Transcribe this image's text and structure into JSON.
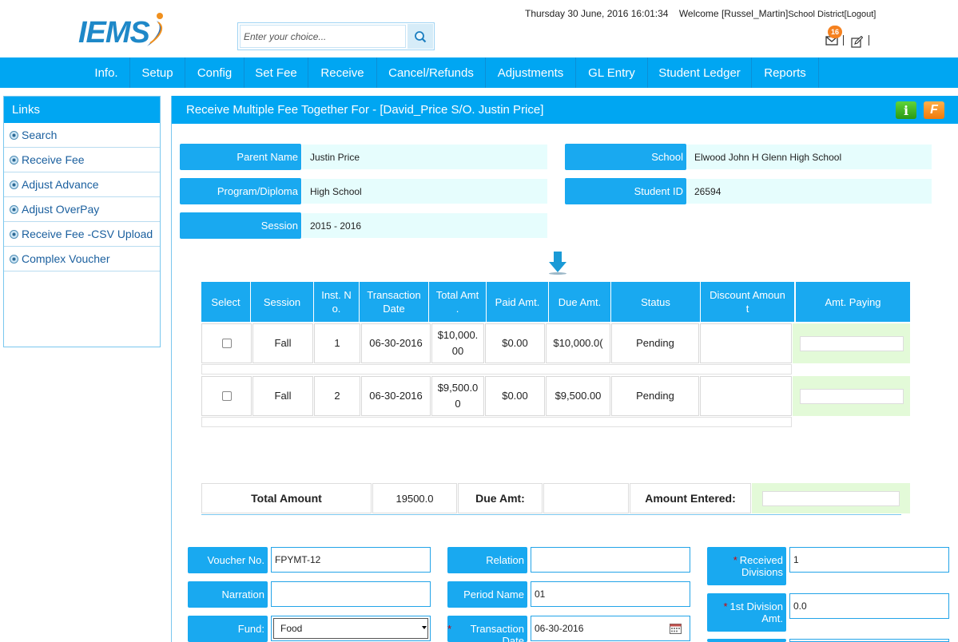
{
  "header": {
    "logo_text": "IEMS",
    "search_placeholder": "Enter your choice...",
    "datetime": "Thursday 30 June, 2016 16:01:34",
    "welcome": "Welcome [Russel_Martin]",
    "school_district": "School District",
    "logout": "[Logout]",
    "mail_count": "16"
  },
  "nav": [
    "Info.",
    "Setup",
    "Config",
    "Set Fee",
    "Receive",
    "Cancel/Refunds",
    "Adjustments",
    "GL Entry",
    "Student Ledger",
    "Reports"
  ],
  "links": {
    "title": "Links",
    "items": [
      "Search",
      "Receive Fee",
      "Adjust Advance",
      "Adjust OverPay",
      "Receive Fee -CSV Upload",
      "Complex Voucher"
    ]
  },
  "panel": {
    "title": "Receive Multiple Fee Together For - [David_Price S/O. Justin Price]",
    "info_btn": "i",
    "f_btn": "F"
  },
  "student": {
    "parent_name_label": "Parent Name",
    "parent_name": "Justin Price",
    "school_label": "School",
    "school": "Elwood John H Glenn High School",
    "program_label": "Program/Diploma",
    "program": "High School",
    "student_id_label": "Student ID",
    "student_id": "26594",
    "session_label": "Session",
    "session": "2015 - 2016"
  },
  "table": {
    "headers": {
      "select": "Select",
      "session": "Session",
      "inst_1": "Inst. N",
      "inst_2": "o.",
      "trans_1": "Transaction",
      "trans_2": "Date",
      "total_1": "Total Amt",
      "total_2": ".",
      "paid": "Paid Amt.",
      "due": "Due Amt.",
      "status": "Status",
      "disc_1": "Discount Amoun",
      "disc_2": "t",
      "paying": "Amt. Paying"
    },
    "rows": [
      {
        "session": "Fall",
        "inst": "1",
        "date": "06-30-2016",
        "total_1": "$10,000.",
        "total_2": "00",
        "paid": "$0.00",
        "due": "$10,000.0(",
        "status": "Pending"
      },
      {
        "session": "Fall",
        "inst": "2",
        "date": "06-30-2016",
        "total_1": "$9,500.0",
        "total_2": "0",
        "paid": "$0.00",
        "due": "$9,500.00",
        "status": "Pending"
      }
    ]
  },
  "totals": {
    "total_label": "Total Amount",
    "total_value": "19500.0",
    "due_label": "Due Amt:",
    "entered_label": "Amount Entered:"
  },
  "form": {
    "voucher_label": "Voucher No.",
    "voucher_value": "FPYMT-12",
    "narration_label": "Narration",
    "fund_label": "Fund:",
    "fund_value": "Food",
    "relation_label": "Relation",
    "period_label": "Period Name",
    "period_value": "01",
    "trans_date_label": "Transaction Date",
    "trans_date_value": "06-30-2016",
    "received_div_label": "Received Divisions",
    "received_div_value": "1",
    "first_div_label": "1st Division Amt.",
    "first_div_value": "0.0"
  }
}
